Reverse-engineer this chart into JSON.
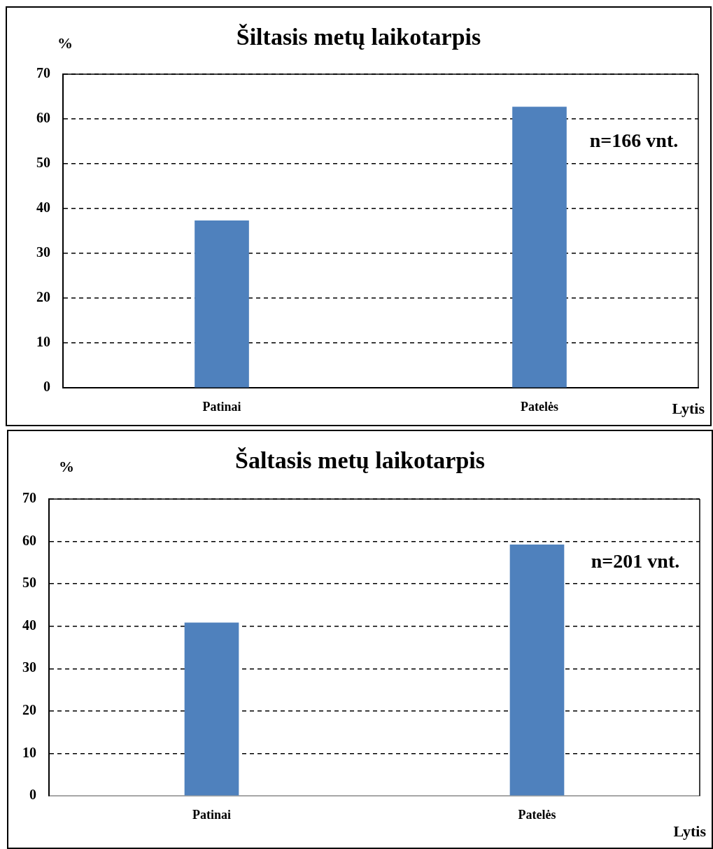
{
  "chart_data": [
    {
      "type": "bar",
      "title": "Šiltasis metų laikotarpis",
      "ylabel": "%",
      "xlabel": "Lytis",
      "categories": [
        "Patinai",
        "Patelės"
      ],
      "values": [
        37.3,
        62.7
      ],
      "color": "#4f81bd",
      "ylim": [
        0,
        70
      ],
      "yticks": [
        0,
        10,
        20,
        30,
        40,
        50,
        60,
        70
      ],
      "grid": "y",
      "annotations": [
        "n=166 vnt."
      ]
    },
    {
      "type": "bar",
      "title": "Šaltasis metų laikotarpis",
      "ylabel": "%",
      "xlabel": "Lytis",
      "categories": [
        "Patinai",
        "Patelės"
      ],
      "values": [
        40.8,
        59.2
      ],
      "color": "#4f81bd",
      "ylim": [
        0,
        70
      ],
      "yticks": [
        0,
        10,
        20,
        30,
        40,
        50,
        60,
        70
      ],
      "grid": "y",
      "annotations": [
        "n=201 vnt."
      ]
    }
  ]
}
